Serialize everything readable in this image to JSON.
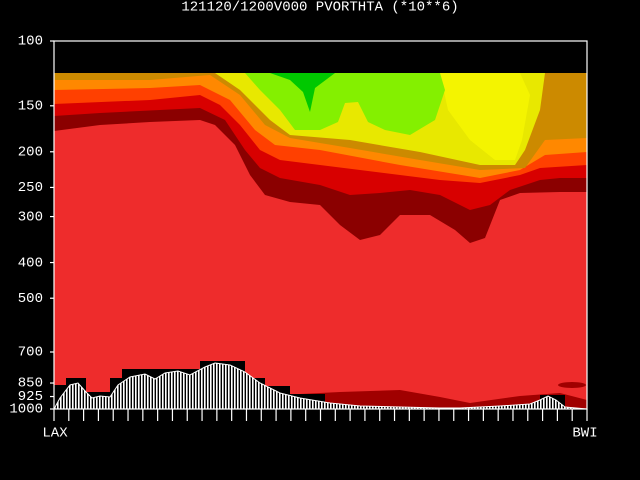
{
  "chart_data": {
    "type": "cross-section",
    "title": "121120/1200V000  PVORTHTA (*10**6)",
    "ylim": [
      1000,
      100
    ],
    "log_y": true,
    "yticks": [
      100,
      150,
      200,
      250,
      300,
      400,
      500,
      700,
      850,
      925,
      1000
    ],
    "x_labels": [
      "LAX",
      "BWI"
    ]
  }
}
